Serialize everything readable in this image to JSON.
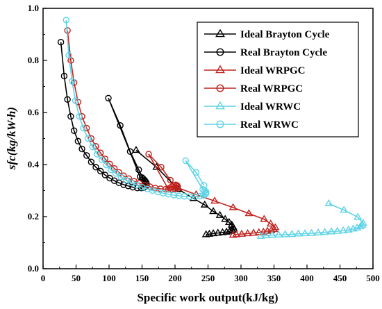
{
  "chart_data": {
    "type": "line",
    "xlabel": "Specific work output(kJ/kg)",
    "ylabel": "sfc(kg/kW·h)",
    "xlim": [
      0,
      500
    ],
    "ylim": [
      0,
      1.0
    ],
    "xticks": [
      "0",
      "50",
      "100",
      "150",
      "200",
      "250",
      "300",
      "350",
      "400",
      "450",
      "500"
    ],
    "yticks": [
      "0.0",
      "0.2",
      "0.4",
      "0.6",
      "0.8",
      "1.0"
    ],
    "legend_position": "top-right",
    "series": [
      {
        "name": "Ideal  Brayton Cycle",
        "color": "#000000",
        "marker": "triangle",
        "x": [
          141,
          172,
          205,
          228,
          245,
          258,
          268,
          276,
          282,
          286,
          288,
          289,
          287,
          283,
          278,
          272,
          265,
          258,
          252,
          247
        ],
        "y": [
          0.455,
          0.39,
          0.305,
          0.27,
          0.245,
          0.22,
          0.205,
          0.19,
          0.178,
          0.168,
          0.16,
          0.153,
          0.148,
          0.144,
          0.141,
          0.139,
          0.137,
          0.135,
          0.133,
          0.131
        ]
      },
      {
        "name": "Real  Brayton Cycle",
        "color": "#000000",
        "marker": "circle",
        "x": [
          27,
          32,
          37,
          42,
          47,
          53,
          59,
          66,
          73,
          80,
          87,
          94,
          101,
          108,
          115,
          122,
          129,
          136,
          143,
          149,
          153,
          156,
          157,
          156,
          154,
          152,
          150,
          147,
          99,
          117,
          132,
          145,
          154
        ],
        "y": [
          0.87,
          0.74,
          0.65,
          0.585,
          0.53,
          0.49,
          0.46,
          0.435,
          0.41,
          0.39,
          0.375,
          0.36,
          0.348,
          0.338,
          0.33,
          0.323,
          0.318,
          0.313,
          0.31,
          0.31,
          0.312,
          0.318,
          0.325,
          0.333,
          0.34,
          0.345,
          0.35,
          0.353,
          0.655,
          0.55,
          0.45,
          0.38,
          0.335
        ]
      },
      {
        "name": "Ideal WRPGC",
        "color": "#c0231e",
        "marker": "triangle",
        "x": [
          205,
          232,
          260,
          288,
          312,
          335,
          345,
          352,
          350,
          346,
          340,
          334,
          327,
          319,
          310,
          301,
          293,
          288
        ],
        "y": [
          0.31,
          0.285,
          0.26,
          0.235,
          0.212,
          0.19,
          0.172,
          0.158,
          0.151,
          0.147,
          0.144,
          0.141,
          0.139,
          0.137,
          0.135,
          0.133,
          0.131,
          0.129
        ]
      },
      {
        "name": "Real WRPGC",
        "color": "#c0231e",
        "marker": "circle",
        "x": [
          37,
          42,
          47,
          53,
          59,
          66,
          73,
          80,
          87,
          94,
          101,
          108,
          115,
          122,
          130,
          138,
          146,
          154,
          162,
          170,
          178,
          186,
          194,
          200,
          203,
          204,
          203,
          201,
          198,
          195,
          192,
          190,
          160,
          179,
          193
        ],
        "y": [
          0.915,
          0.8,
          0.715,
          0.64,
          0.585,
          0.54,
          0.5,
          0.47,
          0.445,
          0.422,
          0.402,
          0.385,
          0.37,
          0.357,
          0.346,
          0.336,
          0.328,
          0.321,
          0.315,
          0.31,
          0.307,
          0.305,
          0.305,
          0.307,
          0.311,
          0.316,
          0.32,
          0.322,
          0.32,
          0.315,
          0.31,
          0.305,
          0.44,
          0.39,
          0.34
        ]
      },
      {
        "name": "Ideal WRWC",
        "color": "#5fd3e6",
        "marker": "triangle",
        "x": [
          433,
          456,
          477,
          485,
          484,
          481,
          476,
          470,
          463,
          455,
          446,
          437,
          427,
          417,
          407,
          397,
          387,
          377,
          367,
          357,
          347,
          338,
          330
        ],
        "y": [
          0.25,
          0.225,
          0.198,
          0.175,
          0.168,
          0.162,
          0.157,
          0.153,
          0.149,
          0.146,
          0.144,
          0.142,
          0.14,
          0.138,
          0.136,
          0.135,
          0.134,
          0.132,
          0.131,
          0.13,
          0.129,
          0.127,
          0.125
        ]
      },
      {
        "name": "Real WRWC",
        "color": "#5fd3e6",
        "marker": "circle",
        "x": [
          35,
          39,
          44,
          49,
          55,
          61,
          68,
          75,
          82,
          89,
          96,
          103,
          110,
          118,
          126,
          134,
          142,
          150,
          158,
          166,
          174,
          182,
          190,
          198,
          206,
          214,
          222,
          230,
          238,
          243,
          246,
          247,
          247,
          245,
          242,
          216,
          232,
          244
        ],
        "y": [
          0.955,
          0.82,
          0.72,
          0.645,
          0.585,
          0.54,
          0.5,
          0.468,
          0.44,
          0.418,
          0.398,
          0.38,
          0.366,
          0.352,
          0.34,
          0.33,
          0.321,
          0.313,
          0.306,
          0.3,
          0.295,
          0.29,
          0.286,
          0.283,
          0.28,
          0.278,
          0.277,
          0.277,
          0.279,
          0.282,
          0.286,
          0.29,
          0.295,
          0.3,
          0.305,
          0.415,
          0.37,
          0.32
        ]
      }
    ]
  }
}
